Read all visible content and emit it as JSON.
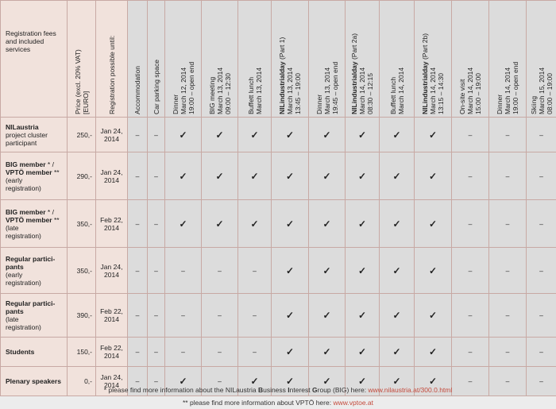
{
  "header": {
    "services": "Registration fees and included services",
    "price": "Price (excl. 20% VAT) [EURO]",
    "reg_possible": "Registration possible until:",
    "columns": [
      {
        "lines": [
          "Accommodation"
        ]
      },
      {
        "lines": [
          "Car parking space"
        ]
      },
      {
        "lines": [
          "Dinner",
          "March 12, 2014",
          "19:00 – open end"
        ]
      },
      {
        "lines": [
          "BIG meeting",
          "March 13, 2014",
          "09:00 – 12:30"
        ]
      },
      {
        "lines": [
          "Buffett lunch",
          "March 13, 2014"
        ]
      },
      {
        "bold": "NILindustrialday",
        "suffix": " (Part 1)",
        "lines": [
          "March 13, 2014",
          "13:45 – 19:00"
        ]
      },
      {
        "lines": [
          "Dinner",
          "March 13, 2014",
          "19:45 – open end"
        ]
      },
      {
        "bold": "NILindustrialday",
        "suffix": " (Part 2a)",
        "lines": [
          "March 14, 2014",
          "08:30 – 12:15"
        ]
      },
      {
        "lines": [
          "Buffett lunch",
          "March 14, 2014"
        ]
      },
      {
        "bold": "NILindustrialday",
        "suffix": " (Part 2b)",
        "lines": [
          "March 14, 2014",
          "13:15 – 14:30"
        ]
      },
      {
        "lines": [
          "On-site visit",
          "March 14, 2014",
          "15:00 – 19:00"
        ]
      },
      {
        "lines": [
          "Dinner",
          "March 14, 2014",
          "19:00 – open end"
        ]
      },
      {
        "lines": [
          "Skiing",
          "March 15, 2014",
          "08:00 – 19:00"
        ]
      }
    ]
  },
  "rows": [
    {
      "label_bold": "NILaustria",
      "label_rest": [
        "project cluster",
        "participant"
      ],
      "price": "250,-",
      "date": [
        "Jan 24,",
        "2014"
      ],
      "marks": [
        "–",
        "–",
        "✓",
        "✓",
        "✓",
        "✓",
        "✓",
        "✓",
        "✓",
        "✓",
        "–",
        "–",
        "–"
      ]
    },
    {
      "label_bold": "BIG member",
      "label_bold_tail": " * /",
      "label_bold2": "VPTÖ member",
      "label_bold2_tail": " **",
      "label_rest": [
        "(early",
        "registration)"
      ],
      "price": "290,-",
      "date": [
        "Jan 24,",
        "2014"
      ],
      "marks": [
        "–",
        "–",
        "✓",
        "✓",
        "✓",
        "✓",
        "✓",
        "✓",
        "✓",
        "✓",
        "–",
        "–",
        "–"
      ]
    },
    {
      "label_bold": "BIG member",
      "label_bold_tail": " * /",
      "label_bold2": "VPTÖ member",
      "label_bold2_tail": " **",
      "label_rest": [
        "(late",
        "registration)"
      ],
      "price": "350,-",
      "date": [
        "Feb 22,",
        "2014"
      ],
      "marks": [
        "–",
        "–",
        "✓",
        "✓",
        "✓",
        "✓",
        "✓",
        "✓",
        "✓",
        "✓",
        "–",
        "–",
        "–"
      ]
    },
    {
      "label_bold": "Regular partici-",
      "label_bold2": "pants",
      "label_rest": [
        "(early",
        "registration)"
      ],
      "price": "350,-",
      "date": [
        "Jan 24,",
        "2014"
      ],
      "marks": [
        "–",
        "–",
        "–",
        "–",
        "–",
        "✓",
        "✓",
        "✓",
        "✓",
        "✓",
        "–",
        "–",
        "–"
      ]
    },
    {
      "label_bold": "Regular partici-",
      "label_bold2": "pants",
      "label_rest": [
        "(late",
        "registration)"
      ],
      "price": "390,-",
      "date": [
        "Feb 22,",
        "2014"
      ],
      "marks": [
        "–",
        "–",
        "–",
        "–",
        "–",
        "✓",
        "✓",
        "✓",
        "✓",
        "✓",
        "–",
        "–",
        "–"
      ]
    },
    {
      "label_bold": "Students",
      "label_rest": [],
      "price": "150,-",
      "date": [
        "Feb 22,",
        "2014"
      ],
      "marks": [
        "–",
        "–",
        "–",
        "–",
        "–",
        "✓",
        "✓",
        "✓",
        "✓",
        "✓",
        "–",
        "–",
        "–"
      ]
    },
    {
      "label_bold": "Plenary speakers",
      "label_rest": [],
      "price": "0,-",
      "date": [
        "Jan 24,",
        "2014"
      ],
      "marks": [
        "–",
        "–",
        "✓",
        "–",
        "✓",
        "✓",
        "✓",
        "✓",
        "✓",
        "✓",
        "–",
        "–",
        "–"
      ]
    }
  ],
  "footnotes": {
    "f1_pre": "* please find more information about the NILaustria ",
    "f1_b1": "B",
    "f1_t1": "usiness ",
    "f1_b2": "I",
    "f1_t2": "nterest ",
    "f1_b3": "G",
    "f1_t3": "roup (BIG) here: ",
    "f1_link": "www.nilaustria.at/300.0.html",
    "f2_pre": "** please find more information about VPTÖ here: ",
    "f2_link": "www.vptoe.at"
  }
}
